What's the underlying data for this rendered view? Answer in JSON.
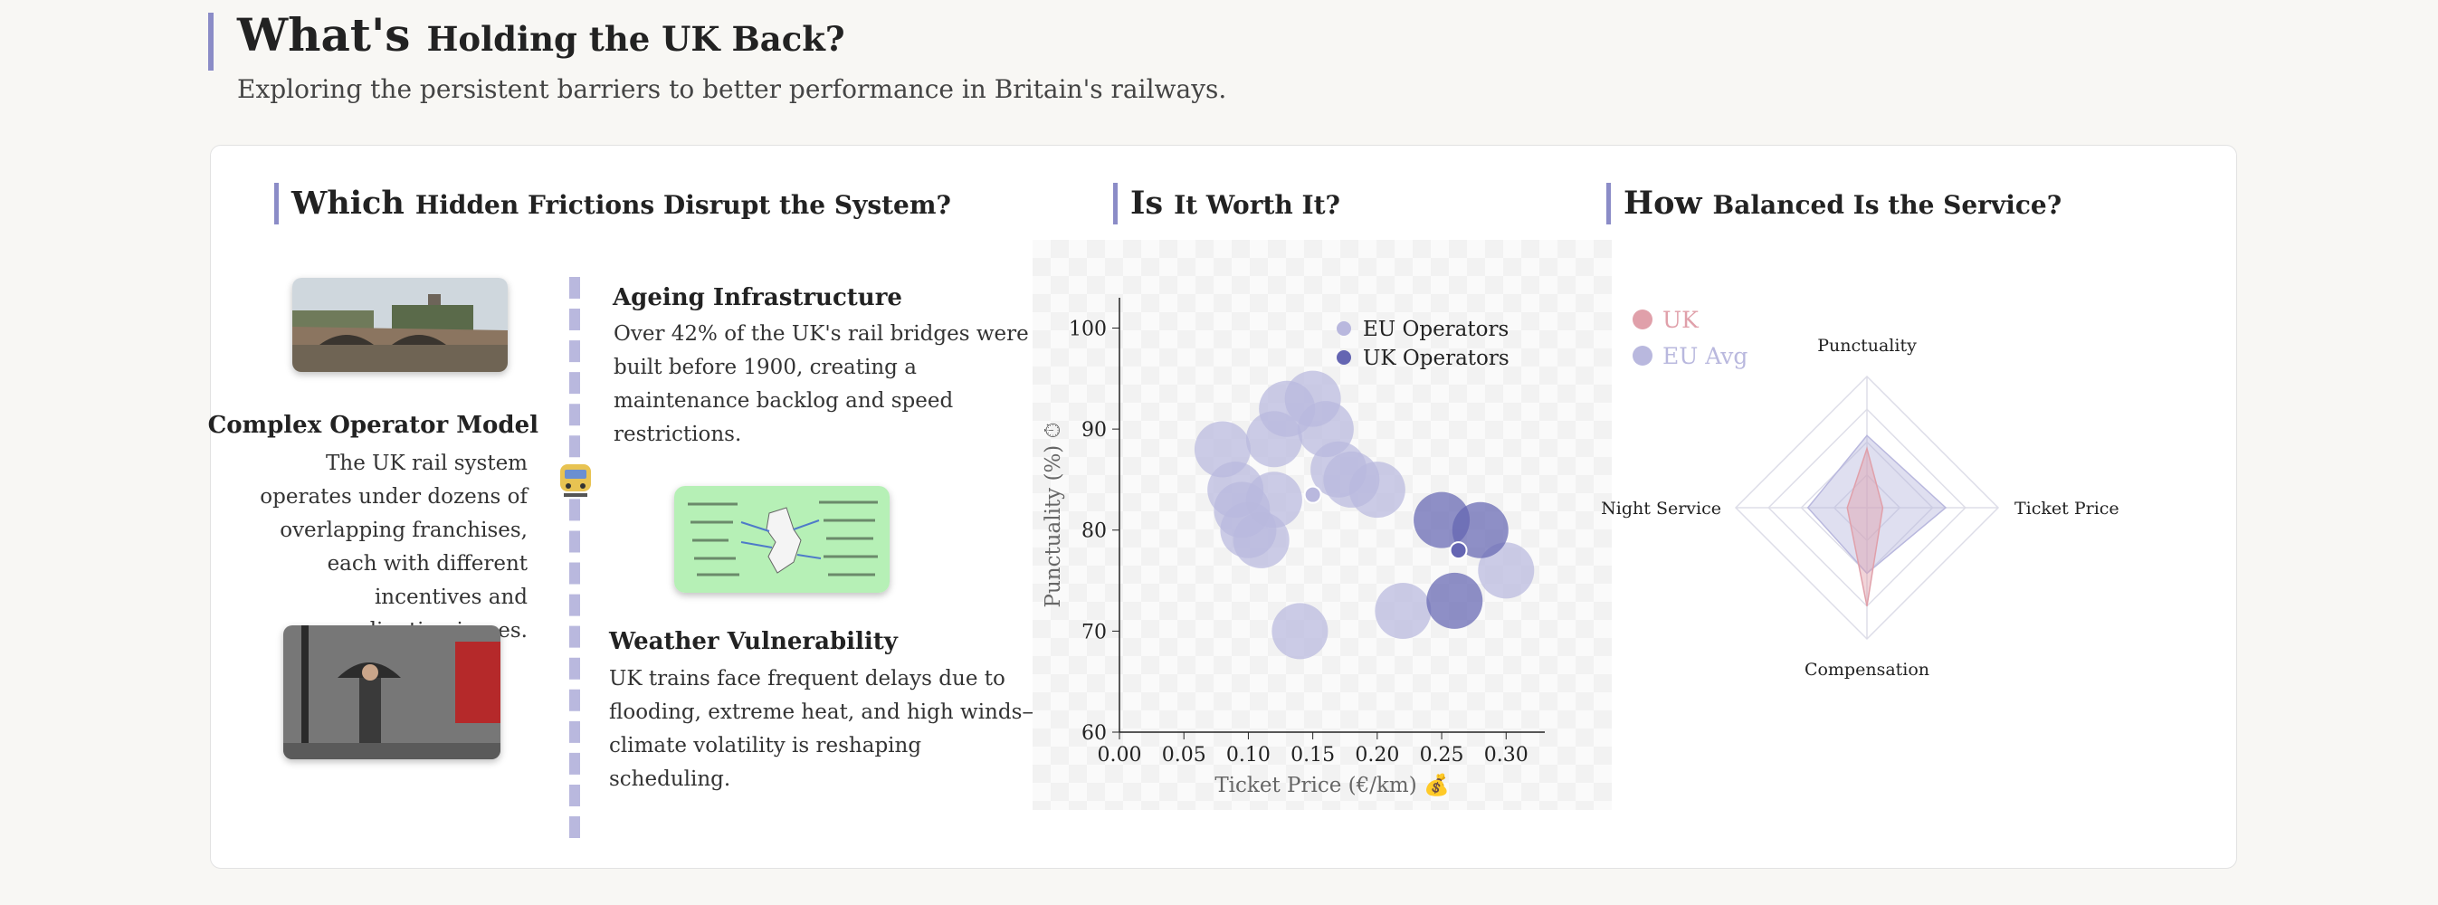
{
  "header": {
    "title_big": "What's",
    "title_small": "Holding the UK Back?",
    "subtitle": "Exploring the persistent barriers to better performance in Britain's railways."
  },
  "frictions": {
    "title_big": "Which",
    "title_small": "Hidden Frictions Disrupt the System?",
    "items": [
      {
        "title": "Ageing Infrastructure",
        "text": "Over 42% of the UK's rail bridges were built before 1900, creating a maintenance backlog and speed restrictions."
      },
      {
        "title": "Complex Operator Model",
        "text": "The UK rail system operates under dozens of overlapping franchises, each with different incentives and coordination issues."
      },
      {
        "title": "Weather Vulnerability",
        "text": "UK trains face frequent delays due to flooding, extreme heat, and high winds—climate volatility is reshaping scheduling."
      }
    ]
  },
  "worth": {
    "title_big": "Is",
    "title_small": "It Worth It?"
  },
  "balance": {
    "title_big": "How",
    "title_small": "Balanced Is the Service?"
  },
  "chart_data": [
    {
      "type": "scatter",
      "title": "",
      "xlabel": "Ticket Price (€/km) 💰",
      "ylabel": "Punctuality (%) ⏱",
      "xlim": [
        0,
        0.33
      ],
      "ylim": [
        60,
        103
      ],
      "x_ticks": [
        "0.00",
        "0.05",
        "0.10",
        "0.15",
        "0.20",
        "0.25",
        "0.30"
      ],
      "y_ticks": [
        "60",
        "70",
        "80",
        "90",
        "100"
      ],
      "legend_position": "top-right",
      "series": [
        {
          "name": "EU Operators",
          "color": "#b9b8de",
          "points": [
            {
              "x": 0.08,
              "y": 88,
              "size": 1.0
            },
            {
              "x": 0.09,
              "y": 84,
              "size": 1.0
            },
            {
              "x": 0.095,
              "y": 82,
              "size": 1.0
            },
            {
              "x": 0.1,
              "y": 80,
              "size": 1.0
            },
            {
              "x": 0.11,
              "y": 79,
              "size": 1.0
            },
            {
              "x": 0.12,
              "y": 83,
              "size": 1.0
            },
            {
              "x": 0.12,
              "y": 89,
              "size": 1.0
            },
            {
              "x": 0.13,
              "y": 92,
              "size": 1.0
            },
            {
              "x": 0.15,
              "y": 93,
              "size": 1.0
            },
            {
              "x": 0.16,
              "y": 90,
              "size": 1.0
            },
            {
              "x": 0.17,
              "y": 86,
              "size": 1.0
            },
            {
              "x": 0.18,
              "y": 85,
              "size": 1.0
            },
            {
              "x": 0.2,
              "y": 84,
              "size": 1.0
            },
            {
              "x": 0.15,
              "y": 83.5,
              "size": 0.3
            },
            {
              "x": 0.14,
              "y": 70,
              "size": 1.0
            },
            {
              "x": 0.22,
              "y": 72,
              "size": 1.0
            },
            {
              "x": 0.3,
              "y": 76,
              "size": 1.0
            }
          ]
        },
        {
          "name": "UK Operators",
          "color": "#6465b2",
          "points": [
            {
              "x": 0.25,
              "y": 81,
              "size": 1.0
            },
            {
              "x": 0.28,
              "y": 80,
              "size": 1.0
            },
            {
              "x": 0.263,
              "y": 78,
              "size": 0.3
            },
            {
              "x": 0.26,
              "y": 73,
              "size": 1.0
            }
          ]
        }
      ]
    },
    {
      "type": "radar",
      "axes": [
        "Punctuality",
        "Ticket Price",
        "Compensation",
        "Night Service"
      ],
      "max": 1,
      "legend_position": "top-left",
      "series": [
        {
          "name": "UK",
          "color": "#e0a0aa",
          "values": [
            0.45,
            0.12,
            0.75,
            0.15
          ]
        },
        {
          "name": "EU Avg",
          "color": "#b9b8de",
          "values": [
            0.55,
            0.6,
            0.5,
            0.45
          ]
        }
      ]
    }
  ]
}
